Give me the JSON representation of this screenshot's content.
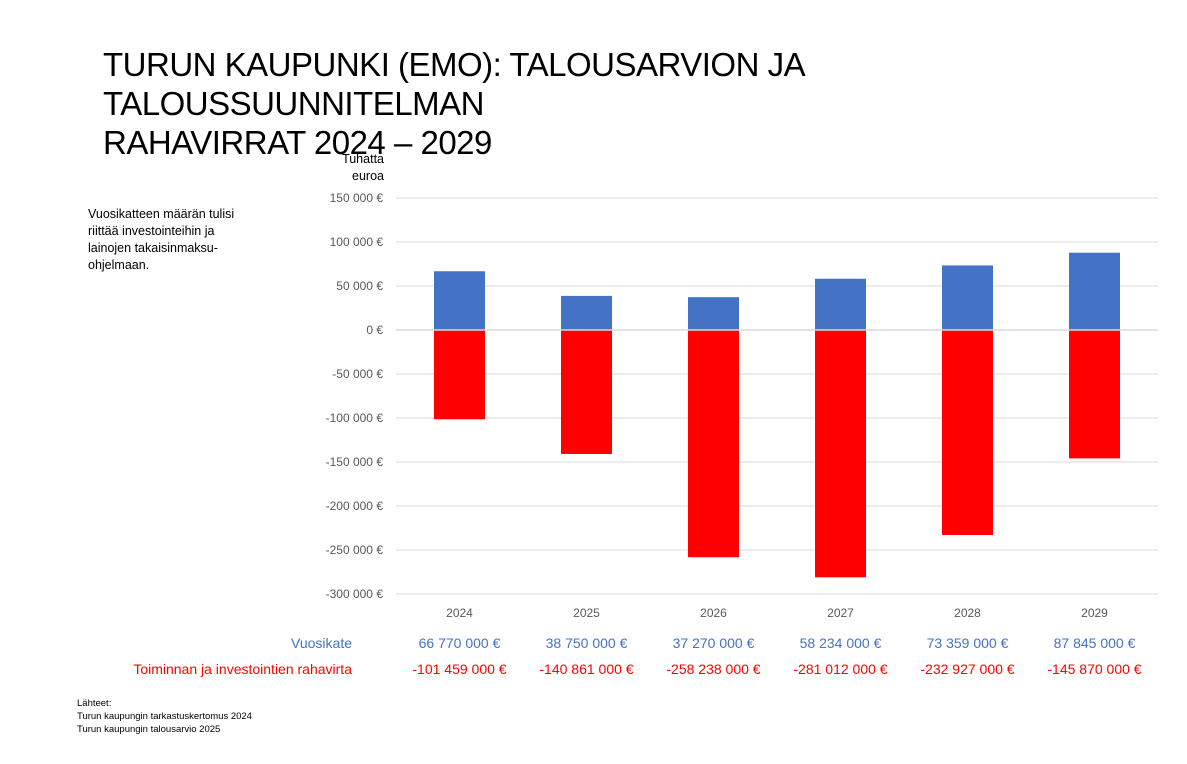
{
  "title_line1": "TURUN KAUPUNKI (EMO): TALOUSARVION JA TALOUSSUUNNITELMAN",
  "title_line2": "RAHAVIRRAT 2024 – 2029",
  "note": "Vuosikatteen määrän tulisi riittää investointeihin ja lainojen takaisinmaksu-ohjelmaan.",
  "unit_line1": "Tuhatta",
  "unit_line2": "euroa",
  "table": {
    "row1_label": "Vuosikate",
    "row1_values": [
      "66 770 000 €",
      "38 750 000 €",
      "37 270 000 €",
      "58 234 000 €",
      "73 359 000 €",
      "87 845 000 €"
    ],
    "row2_label": "Toiminnan ja investointien rahavirta",
    "row2_values": [
      "-101 459 000 €",
      "-140 861 000 €",
      "-258 238 000 €",
      "-281 012 000 €",
      "-232 927 000 €",
      "-145 870 000 €"
    ]
  },
  "sources": {
    "heading": "Lähteet:",
    "line1": "Turun kaupungin tarkastuskertomus 2024",
    "line2": "Turun kaupungin talousarvio 2025"
  },
  "colors": {
    "vuosikate": "#4472c4",
    "rahavirta": "#ff0000",
    "grid": "#d9d9d9",
    "ticks": "#595959"
  },
  "chart_data": {
    "type": "bar",
    "stacked": true,
    "categories": [
      "2024",
      "2025",
      "2026",
      "2027",
      "2028",
      "2029"
    ],
    "series": [
      {
        "name": "Vuosikate",
        "values": [
          66770,
          38750,
          37270,
          58234,
          73359,
          87845
        ]
      },
      {
        "name": "Toiminnan ja investointien rahavirta",
        "values": [
          -101459,
          -140861,
          -258238,
          -281012,
          -232927,
          -145870
        ]
      }
    ],
    "ylabel": "Tuhatta euroa",
    "ylim": [
      -300000,
      150000
    ],
    "yticks": [
      150000,
      100000,
      50000,
      0,
      -50000,
      -100000,
      -150000,
      -200000,
      -250000,
      -300000
    ],
    "ytick_labels": [
      "150 000 €",
      "100 000 €",
      "50 000 €",
      "0 €",
      "-50 000 €",
      "-100 000 €",
      "-150 000 €",
      "-200 000 €",
      "-250 000 €",
      "-300 000 €"
    ],
    "grid": true,
    "legend": "table-below"
  }
}
